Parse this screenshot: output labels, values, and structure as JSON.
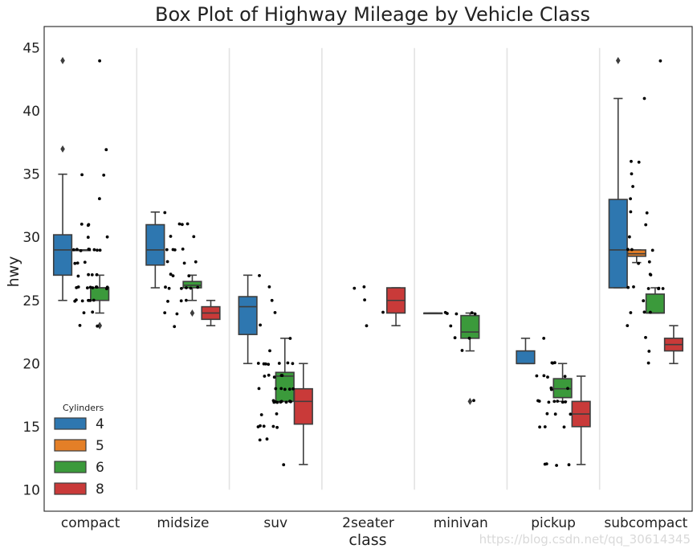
{
  "chart_data": {
    "type": "box",
    "title": "Box Plot of Highway Mileage by Vehicle Class",
    "xlabel": "class",
    "ylabel": "hwy",
    "ylim": [
      8.3,
      46.7
    ],
    "yticks": [
      10,
      15,
      20,
      25,
      30,
      35,
      40,
      45
    ],
    "categories": [
      "compact",
      "midsize",
      "suv",
      "2seater",
      "minivan",
      "pickup",
      "subcompact"
    ],
    "legend": {
      "title": "Cylinders",
      "placement": "lower-left",
      "entries": [
        {
          "label": "4",
          "color": "#2e77b0"
        },
        {
          "label": "5",
          "color": "#e47f27"
        },
        {
          "label": "6",
          "color": "#3b9a3b"
        },
        {
          "label": "8",
          "color": "#c93a39"
        }
      ]
    },
    "separators": {
      "ymin": 10,
      "ymax": 45,
      "color": "#e3e3e3"
    },
    "boxes": [
      {
        "category": "compact",
        "cyl": "4",
        "q1": 27,
        "median": 29,
        "q3": 30.2,
        "whislo": 25,
        "whishi": 35,
        "fliers": [
          37,
          44
        ]
      },
      {
        "category": "compact",
        "cyl": "5",
        "q1": 29,
        "median": 29,
        "q3": 29,
        "whislo": 29,
        "whishi": 29,
        "fliers": []
      },
      {
        "category": "compact",
        "cyl": "6",
        "q1": 25,
        "median": 26,
        "q3": 26,
        "whislo": 24,
        "whishi": 27,
        "fliers": [
          23,
          23
        ]
      },
      {
        "category": "midsize",
        "cyl": "4",
        "q1": 27.8,
        "median": 29,
        "q3": 31,
        "whislo": 26,
        "whishi": 32,
        "fliers": []
      },
      {
        "category": "midsize",
        "cyl": "6",
        "q1": 26,
        "median": 26.2,
        "q3": 26.5,
        "whislo": 25,
        "whishi": 27,
        "fliers": [
          24
        ]
      },
      {
        "category": "midsize",
        "cyl": "8",
        "q1": 23.5,
        "median": 24,
        "q3": 24.5,
        "whislo": 23,
        "whishi": 25,
        "fliers": []
      },
      {
        "category": "suv",
        "cyl": "4",
        "q1": 22.3,
        "median": 24.5,
        "q3": 25.3,
        "whislo": 20,
        "whishi": 27,
        "fliers": []
      },
      {
        "category": "suv",
        "cyl": "6",
        "q1": 17,
        "median": 19,
        "q3": 19.3,
        "whislo": 17,
        "whishi": 22,
        "fliers": []
      },
      {
        "category": "suv",
        "cyl": "8",
        "q1": 15.2,
        "median": 17,
        "q3": 18,
        "whislo": 12,
        "whishi": 20,
        "fliers": []
      },
      {
        "category": "2seater",
        "cyl": "8",
        "q1": 24,
        "median": 25,
        "q3": 26,
        "whislo": 23,
        "whishi": 26,
        "fliers": []
      },
      {
        "category": "minivan",
        "cyl": "4",
        "q1": 24,
        "median": 24,
        "q3": 24,
        "whislo": 24,
        "whishi": 24,
        "fliers": []
      },
      {
        "category": "minivan",
        "cyl": "6",
        "q1": 22,
        "median": 22.5,
        "q3": 23.8,
        "whislo": 21,
        "whishi": 24,
        "fliers": [
          17
        ]
      },
      {
        "category": "pickup",
        "cyl": "4",
        "q1": 20,
        "median": 20,
        "q3": 21,
        "whislo": 20,
        "whishi": 22,
        "fliers": []
      },
      {
        "category": "pickup",
        "cyl": "6",
        "q1": 17.3,
        "median": 18,
        "q3": 18.8,
        "whislo": 17,
        "whishi": 20,
        "fliers": []
      },
      {
        "category": "pickup",
        "cyl": "8",
        "q1": 15,
        "median": 16,
        "q3": 17,
        "whislo": 12,
        "whishi": 19,
        "fliers": []
      },
      {
        "category": "subcompact",
        "cyl": "4",
        "q1": 26,
        "median": 29,
        "q3": 33,
        "whislo": 26,
        "whishi": 41,
        "fliers": [
          44
        ]
      },
      {
        "category": "subcompact",
        "cyl": "5",
        "q1": 28.5,
        "median": 28.7,
        "q3": 29,
        "whislo": 28,
        "whishi": 29,
        "fliers": []
      },
      {
        "category": "subcompact",
        "cyl": "6",
        "q1": 24,
        "median": 24,
        "q3": 25.5,
        "whislo": 24,
        "whishi": 26,
        "fliers": []
      },
      {
        "category": "subcompact",
        "cyl": "8",
        "q1": 21,
        "median": 21.5,
        "q3": 22,
        "whislo": 20,
        "whishi": 23,
        "fliers": []
      }
    ],
    "strip_points": [
      {
        "category": "compact",
        "values": [
          25,
          25,
          25,
          25,
          25,
          25,
          26,
          26,
          26,
          26,
          26,
          26,
          26,
          26,
          26,
          27,
          27,
          27,
          27,
          28,
          28,
          28,
          29,
          29,
          29,
          29,
          29,
          29,
          29,
          29,
          30,
          30,
          31,
          31,
          31,
          33,
          35,
          35,
          37,
          44,
          24,
          24,
          23,
          23
        ]
      },
      {
        "category": "midsize",
        "values": [
          23,
          24,
          25,
          25,
          26,
          26,
          26,
          26,
          26,
          26,
          27,
          27,
          27,
          28,
          28,
          28,
          29,
          29,
          29,
          29,
          30,
          30,
          31,
          31,
          31,
          32,
          25,
          24
        ]
      },
      {
        "category": "suv",
        "values": [
          12,
          14,
          14,
          15,
          15,
          15,
          15,
          15,
          16,
          16,
          17,
          17,
          17,
          17,
          17,
          17,
          17,
          17,
          17,
          18,
          18,
          18,
          18,
          18,
          18,
          19,
          19,
          19,
          19,
          19,
          20,
          20,
          20,
          20,
          20,
          20,
          20,
          21,
          22,
          23,
          24,
          25,
          26,
          27
        ]
      },
      {
        "category": "2seater",
        "values": [
          23,
          24,
          25,
          26,
          26
        ]
      },
      {
        "category": "minivan",
        "values": [
          17,
          21,
          22,
          22,
          23,
          24,
          24,
          24,
          24,
          24
        ]
      },
      {
        "category": "pickup",
        "values": [
          12,
          12,
          12,
          12,
          15,
          15,
          15,
          16,
          16,
          16,
          17,
          17,
          17,
          17,
          17,
          17,
          17,
          18,
          18,
          18,
          19,
          19,
          19,
          19,
          20,
          20,
          20,
          22
        ]
      },
      {
        "category": "subcompact",
        "values": [
          20,
          21,
          22,
          23,
          24,
          24,
          24,
          25,
          26,
          26,
          26,
          26,
          26,
          26,
          27,
          27,
          28,
          28,
          29,
          29,
          29,
          30,
          31,
          32,
          32,
          33,
          34,
          35,
          36,
          36,
          41,
          44
        ]
      }
    ]
  },
  "watermark": "https://blog.csdn.net/qq_30614345"
}
